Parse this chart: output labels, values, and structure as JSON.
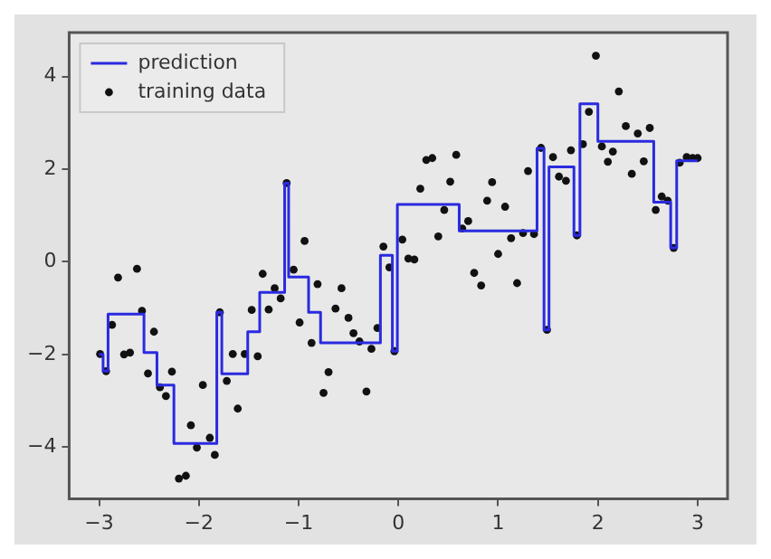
{
  "chart_data": {
    "type": "scatter",
    "xlim": [
      -3.3,
      3.3
    ],
    "ylim": [
      -5.12,
      4.95
    ],
    "xticks": [
      -3,
      -2,
      -1,
      0,
      1,
      2,
      3
    ],
    "yticks": [
      -4,
      -2,
      0,
      2,
      4
    ],
    "grid": false,
    "legend": "top left",
    "series": [
      {
        "name": "prediction",
        "type": "step",
        "color": "#2a2ae0",
        "marker": "none",
        "line_style": "solid",
        "x": [
          -3.0,
          -2.96,
          -2.91,
          -2.55,
          -2.42,
          -2.25,
          -1.82,
          -1.77,
          -1.51,
          -1.39,
          -1.14,
          -1.1,
          -0.9,
          -0.78,
          -0.18,
          -0.06,
          -0.01,
          0.61,
          1.39,
          1.46,
          1.51,
          1.76,
          1.82,
          2.0,
          2.56,
          2.73,
          2.79,
          3.0
        ],
        "values": [
          -2.0,
          -2.36,
          -1.13,
          -1.96,
          -2.66,
          -3.92,
          -1.09,
          -2.42,
          -1.51,
          -0.66,
          1.7,
          -0.33,
          -1.09,
          -1.75,
          0.14,
          -1.93,
          1.24,
          0.67,
          2.45,
          -1.47,
          2.05,
          0.57,
          3.41,
          2.6,
          1.29,
          0.3,
          2.18,
          2.18
        ]
      },
      {
        "name": "training data",
        "color": "#111111",
        "marker": "circle",
        "x": [
          -2.99,
          -2.93,
          -2.87,
          -2.81,
          -2.75,
          -2.69,
          -2.62,
          -2.57,
          -2.51,
          -2.45,
          -2.39,
          -2.33,
          -2.27,
          -2.2,
          -2.13,
          -2.08,
          -2.02,
          -1.96,
          -1.89,
          -1.84,
          -1.79,
          -1.72,
          -1.66,
          -1.61,
          -1.54,
          -1.47,
          -1.41,
          -1.36,
          -1.3,
          -1.24,
          -1.18,
          -1.12,
          -1.05,
          -0.99,
          -0.94,
          -0.87,
          -0.81,
          -0.75,
          -0.7,
          -0.63,
          -0.57,
          -0.5,
          -0.45,
          -0.39,
          -0.32,
          -0.27,
          -0.21,
          -0.15,
          -0.09,
          -0.04,
          0.04,
          0.1,
          0.16,
          0.22,
          0.28,
          0.34,
          0.4,
          0.46,
          0.52,
          0.58,
          0.64,
          0.7,
          0.76,
          0.83,
          0.89,
          0.94,
          1.0,
          1.07,
          1.13,
          1.19,
          1.25,
          1.3,
          1.36,
          1.43,
          1.49,
          1.55,
          1.61,
          1.68,
          1.73,
          1.79,
          1.85,
          1.91,
          1.98,
          2.04,
          2.1,
          2.15,
          2.21,
          2.28,
          2.34,
          2.4,
          2.46,
          2.52,
          2.58,
          2.64,
          2.7,
          2.76,
          2.82,
          2.89,
          2.95,
          3.0
        ],
        "values": [
          -1.99,
          -2.36,
          -1.36,
          -0.34,
          -2.0,
          -1.96,
          -0.15,
          -1.06,
          -2.41,
          -1.51,
          -2.71,
          -2.9,
          -2.37,
          -4.68,
          -4.62,
          -3.53,
          -4.01,
          -2.66,
          -3.8,
          -4.17,
          -1.09,
          -2.57,
          -1.99,
          -3.17,
          -1.99,
          -1.04,
          -2.04,
          -0.26,
          -1.03,
          -0.57,
          -0.79,
          1.7,
          -0.17,
          -1.31,
          0.45,
          -1.75,
          -0.48,
          -2.83,
          -2.38,
          -1.01,
          -0.57,
          -1.21,
          -1.54,
          -1.72,
          -2.8,
          -1.88,
          -1.43,
          0.33,
          -0.12,
          -1.93,
          0.48,
          0.07,
          0.05,
          1.58,
          2.2,
          2.24,
          0.55,
          1.12,
          1.73,
          2.31,
          0.72,
          0.88,
          -0.24,
          -0.51,
          1.32,
          1.72,
          0.17,
          1.19,
          0.51,
          -0.46,
          0.62,
          1.96,
          0.6,
          2.46,
          -1.47,
          2.26,
          1.84,
          1.75,
          2.41,
          0.57,
          2.54,
          3.24,
          4.45,
          2.49,
          2.16,
          2.38,
          3.68,
          2.93,
          1.9,
          2.77,
          2.17,
          2.89,
          1.12,
          1.41,
          1.32,
          0.3,
          2.14,
          2.26,
          2.24,
          2.24
        ]
      }
    ]
  }
}
